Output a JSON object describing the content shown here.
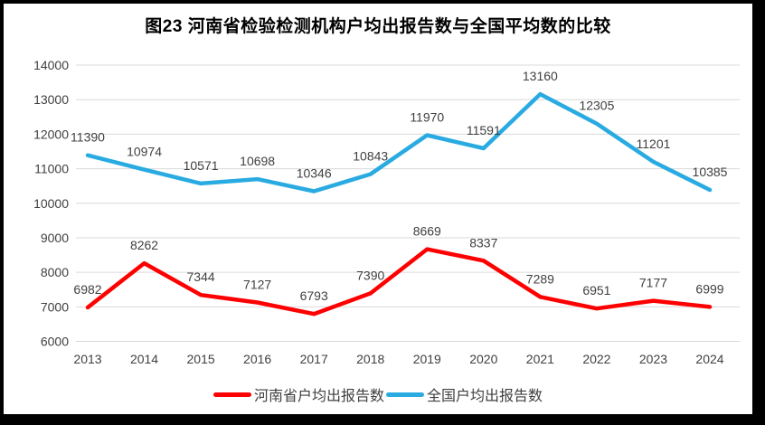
{
  "title": "图23   河南省检验检测机构户均出报告数与全国平均数的比较",
  "chart_data": {
    "type": "line",
    "title": "图23   河南省检验检测机构户均出报告数与全国平均数的比较",
    "categories": [
      "2013",
      "2014",
      "2015",
      "2016",
      "2017",
      "2018",
      "2019",
      "2020",
      "2021",
      "2022",
      "2023",
      "2024"
    ],
    "series": [
      {
        "name": "河南省户均出报告数",
        "color": "#FE0000",
        "values": [
          6982,
          8262,
          7344,
          7127,
          6793,
          7390,
          8669,
          8337,
          7289,
          6951,
          7177,
          6999
        ]
      },
      {
        "name": "全国户均出报告数",
        "color": "#29ABE2",
        "values": [
          11390,
          10974,
          10571,
          10698,
          10346,
          10843,
          11970,
          11591,
          13160,
          12305,
          11201,
          10385
        ]
      }
    ],
    "xlabel": "",
    "ylabel": "",
    "ylim": [
      6000,
      14000
    ],
    "ytick_step": 1000,
    "yticks": [
      6000,
      7000,
      8000,
      9000,
      10000,
      11000,
      12000,
      13000,
      14000
    ],
    "grid": true,
    "data_labels": true,
    "legend_position": "bottom"
  },
  "style": {
    "grid_color": "#D9D9D9",
    "tick_color": "#404040",
    "data_label_color": "#404040",
    "frame_color": "#000000",
    "background": "#FFFFFF",
    "henan_line_color": "#FE0000",
    "national_line_color": "#29ABE2"
  }
}
